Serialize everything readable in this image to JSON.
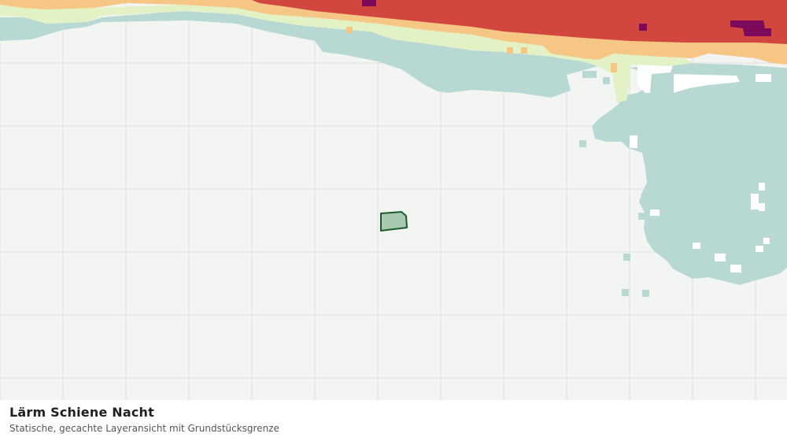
{
  "map": {
    "title": "Lärm Schiene Nacht",
    "subtitle": "Statische, gecachte Layeransicht mit Grundstücksgrenze"
  },
  "layers": {
    "noise_bands": [
      {
        "name": "band-lowest",
        "color": "#b8d8d4"
      },
      {
        "name": "band-low",
        "color": "#e3f2c4"
      },
      {
        "name": "band-medium",
        "color": "#f6c685"
      },
      {
        "name": "band-high",
        "color": "#d1463e"
      },
      {
        "name": "band-highest",
        "color": "#7b0a5a"
      }
    ],
    "parcel": {
      "fill": "#a7c9b0",
      "stroke": "#1d5a2c"
    }
  },
  "colors": {
    "background": "#f3f5f2",
    "grid": "#dcdedb"
  }
}
